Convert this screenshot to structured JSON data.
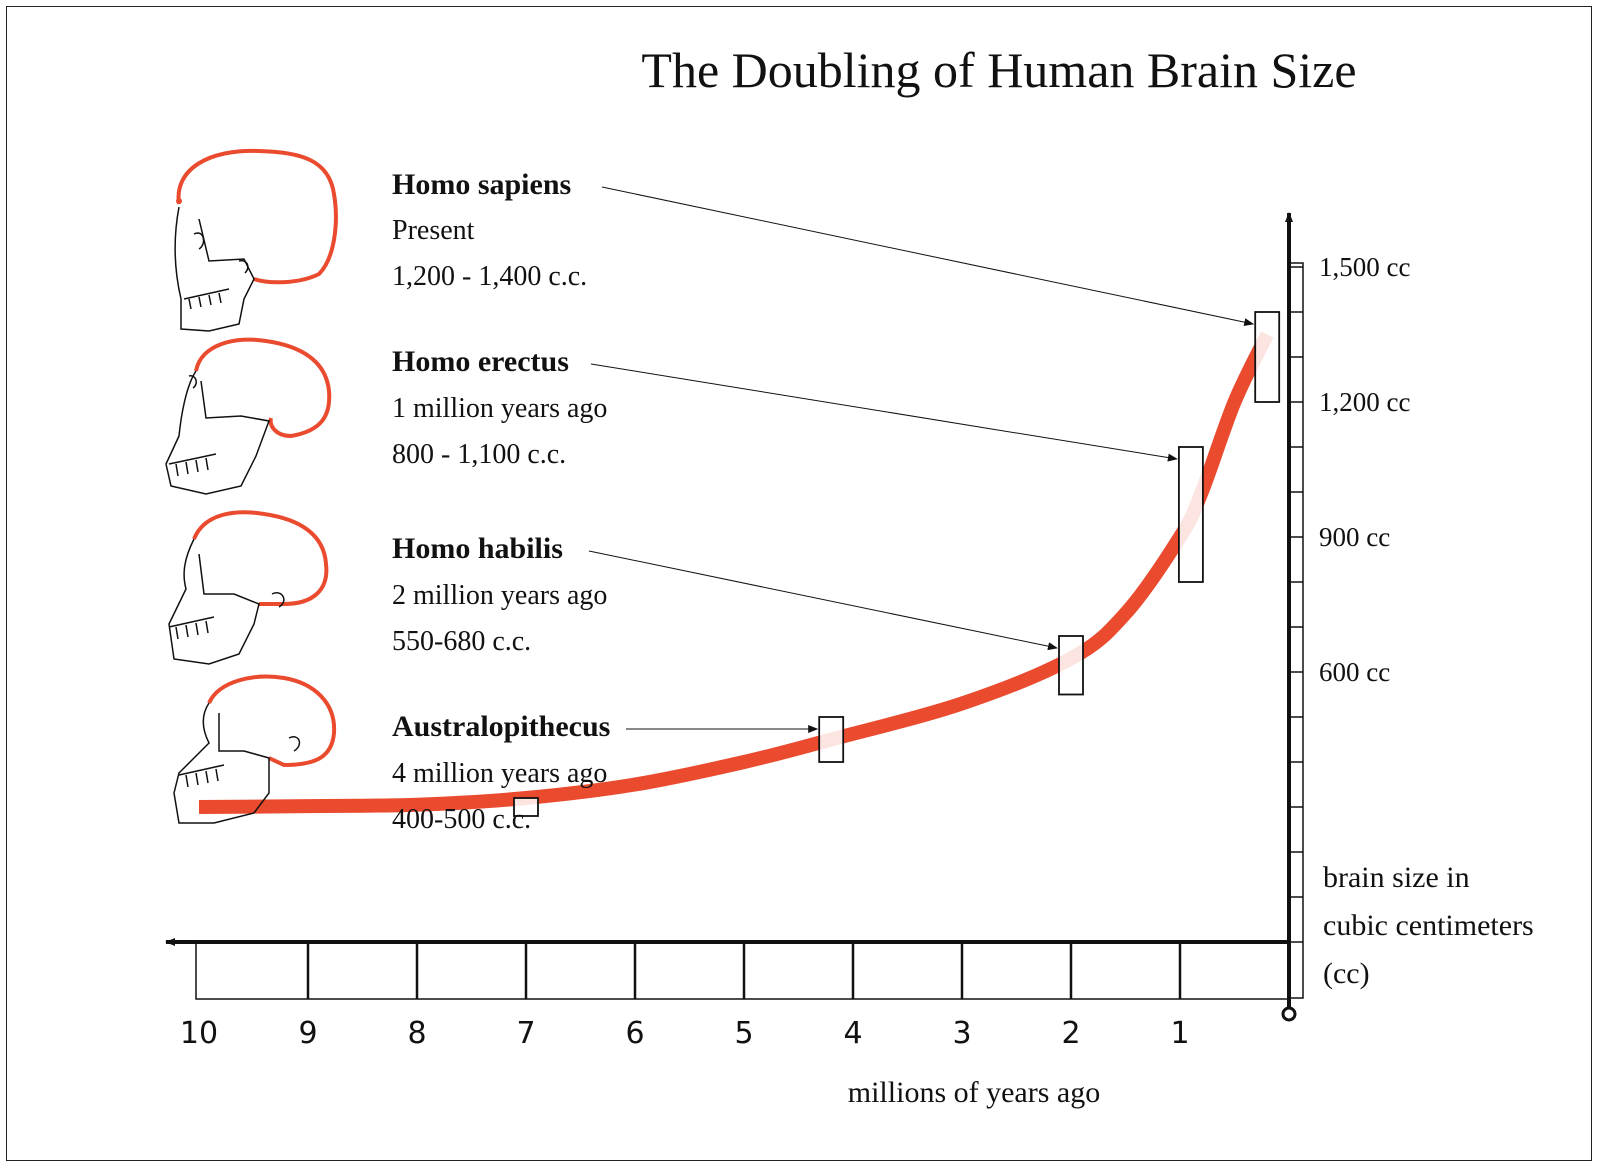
{
  "title": "The Doubling of Human Brain Size",
  "colors": {
    "curve": "#ea4a2e",
    "ink": "#111111",
    "skull_cap": "#ea4a2e"
  },
  "x_axis": {
    "label": "millions of years ago",
    "ticks": [
      "10",
      "9",
      "8",
      "7",
      "6",
      "5",
      "4",
      "3",
      "2",
      "1"
    ]
  },
  "y_axis": {
    "label_lines": [
      "brain size in",
      "cubic centimeters",
      "(cc)"
    ],
    "ticks": [
      "1,500 cc",
      "1,200 cc",
      "900 cc",
      "600 cc"
    ]
  },
  "species": [
    {
      "name": "Homo sapiens",
      "time": "Present",
      "size": "1,200 - 1,400 c.c.",
      "icon": "skull-homo-sapiens-icon"
    },
    {
      "name": "Homo erectus",
      "time": "1 million years ago",
      "size": "800 - 1,100 c.c.",
      "icon": "skull-homo-erectus-icon"
    },
    {
      "name": "Homo habilis",
      "time": "2 million years ago",
      "size": "550-680 c.c.",
      "icon": "skull-homo-habilis-icon"
    },
    {
      "name": "Australopithecus",
      "time": "4 million years ago",
      "size": "400-500 c.c.",
      "icon": "skull-australopithecus-icon"
    }
  ],
  "chart_data": {
    "type": "line",
    "title": "The Doubling of Human Brain Size",
    "xlabel": "millions of years ago",
    "ylabel": "brain size in cubic centimeters (cc)",
    "x_reversed": true,
    "xlim": [
      10,
      0
    ],
    "ylim": [
      0,
      1500
    ],
    "series": [
      {
        "x": [
          10,
          9,
          8,
          7,
          6,
          5,
          4.2,
          3,
          2,
          1.5,
          1,
          0.8,
          0.5,
          0.2
        ],
        "y": [
          300,
          302,
          305,
          320,
          350,
          400,
          450,
          530,
          630,
          730,
          900,
          1000,
          1200,
          1350
        ]
      }
    ],
    "ranges": [
      {
        "label": "",
        "x": 7,
        "low": 280,
        "high": 320
      },
      {
        "label": "Australopithecus",
        "x": 4.2,
        "low": 400,
        "high": 500
      },
      {
        "label": "Homo habilis",
        "x": 2,
        "low": 550,
        "high": 680
      },
      {
        "label": "Homo erectus",
        "x": 0.9,
        "low": 800,
        "high": 1100
      },
      {
        "label": "Homo sapiens",
        "x": 0.2,
        "low": 1200,
        "high": 1400
      }
    ],
    "grid": false
  }
}
